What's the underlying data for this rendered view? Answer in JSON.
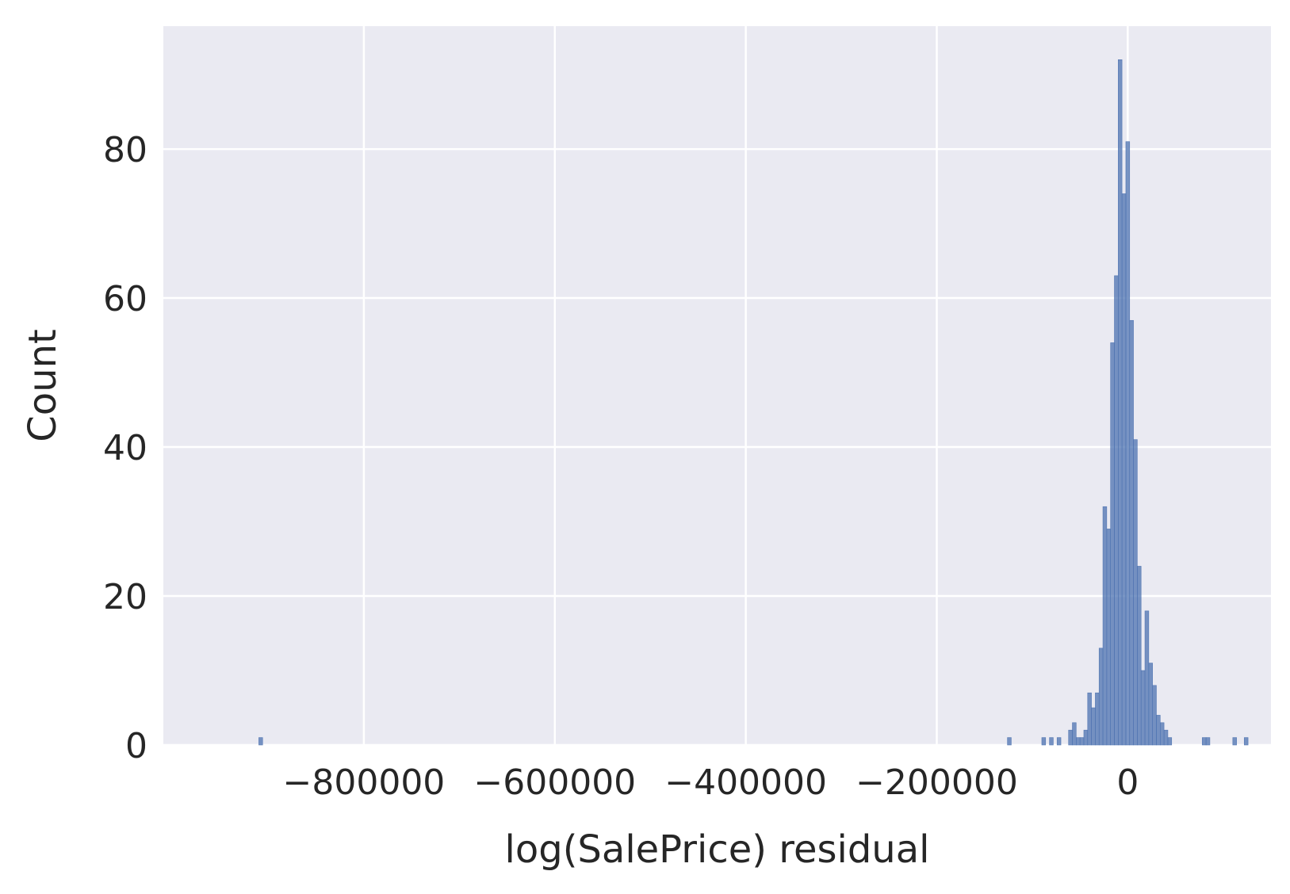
{
  "chart_data": {
    "type": "bar",
    "subtype": "histogram",
    "xlabel": "log(SalePrice) residual",
    "ylabel": "Count",
    "xlim": [
      -1010000,
      150000
    ],
    "ylim": [
      0,
      96.5
    ],
    "x_ticks": [
      -800000,
      -600000,
      -400000,
      -200000,
      0
    ],
    "x_tick_labels": [
      "−800000",
      "−600000",
      "−400000",
      "−200000",
      "0"
    ],
    "y_ticks": [
      0,
      20,
      40,
      60,
      80
    ],
    "y_tick_labels": [
      "0",
      "20",
      "40",
      "60",
      "80"
    ],
    "grid": true,
    "legend": "none",
    "bar_color": "#4C72B0",
    "background_color": "#EAEAF2",
    "grid_color": "#FFFFFF",
    "bin_width": 4000,
    "bins": [
      {
        "x": -910000,
        "count": 1
      },
      {
        "x": -126000,
        "count": 1
      },
      {
        "x": -90000,
        "count": 1
      },
      {
        "x": -82000,
        "count": 1
      },
      {
        "x": -74000,
        "count": 1
      },
      {
        "x": -62000,
        "count": 2
      },
      {
        "x": -58000,
        "count": 3
      },
      {
        "x": -54000,
        "count": 1
      },
      {
        "x": -50000,
        "count": 1
      },
      {
        "x": -46000,
        "count": 2
      },
      {
        "x": -42000,
        "count": 7
      },
      {
        "x": -38000,
        "count": 5
      },
      {
        "x": -34000,
        "count": 7
      },
      {
        "x": -30000,
        "count": 13
      },
      {
        "x": -26000,
        "count": 32
      },
      {
        "x": -22000,
        "count": 29
      },
      {
        "x": -18000,
        "count": 54
      },
      {
        "x": -14000,
        "count": 63
      },
      {
        "x": -10000,
        "count": 92
      },
      {
        "x": -6000,
        "count": 74
      },
      {
        "x": -2000,
        "count": 81
      },
      {
        "x": 2000,
        "count": 57
      },
      {
        "x": 6000,
        "count": 41
      },
      {
        "x": 10000,
        "count": 24
      },
      {
        "x": 14000,
        "count": 10
      },
      {
        "x": 18000,
        "count": 18
      },
      {
        "x": 22000,
        "count": 11
      },
      {
        "x": 26000,
        "count": 8
      },
      {
        "x": 30000,
        "count": 4
      },
      {
        "x": 34000,
        "count": 3
      },
      {
        "x": 38000,
        "count": 2
      },
      {
        "x": 42000,
        "count": 1
      },
      {
        "x": 78000,
        "count": 1
      },
      {
        "x": 82000,
        "count": 1
      },
      {
        "x": 110000,
        "count": 1
      },
      {
        "x": 122000,
        "count": 1
      }
    ]
  }
}
